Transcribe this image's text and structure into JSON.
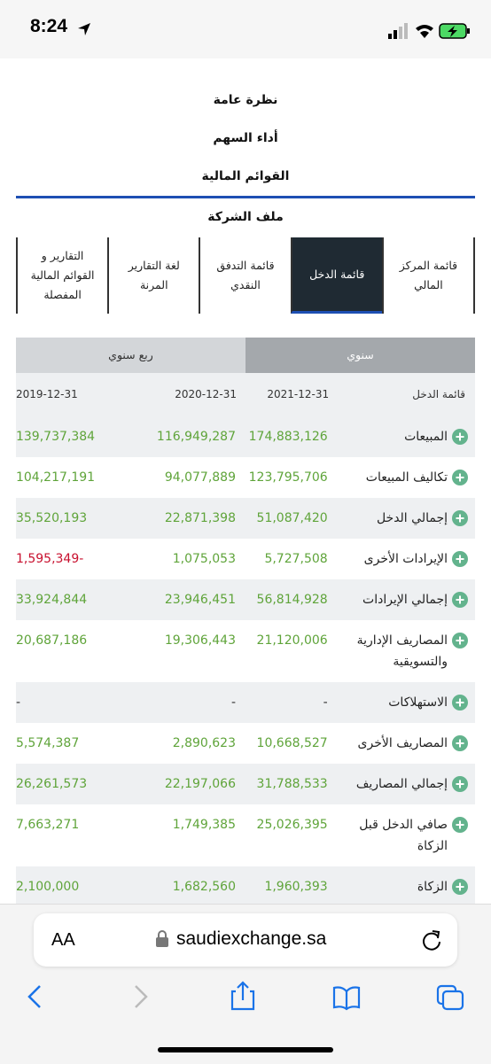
{
  "status_bar": {
    "time": "8:24"
  },
  "nav": {
    "items": [
      "نظرة عامة",
      "أداء السهم",
      "القوائم المالية",
      "ملف الشركة"
    ],
    "selected": 2
  },
  "tabs": {
    "items": [
      "قائمة المركز المالي",
      "قائمة الدخل",
      "قائمة التدفق النقدي",
      "لغة التقارير المرنة",
      "التقارير و القوائم المالية المفصلة"
    ],
    "active": 1
  },
  "period": {
    "items": [
      "سنوي",
      "ربع سنوي"
    ],
    "active": 0
  },
  "table": {
    "header": [
      "قائمة الدخل",
      "2021-12-31",
      "2020-12-31",
      "2019-12-31"
    ],
    "rows": [
      [
        "المبيعات",
        "174,883,126",
        "116,949,287",
        "139,737,384"
      ],
      [
        "تكاليف المبيعات",
        "123,795,706",
        "94,077,889",
        "104,217,191"
      ],
      [
        "إجمالي الدخل",
        "51,087,420",
        "22,871,398",
        "35,520,193"
      ],
      [
        "الإيرادات الأخرى",
        "5,727,508",
        "1,075,053",
        "1,595,349-"
      ],
      [
        "إجمالي الإيرادات",
        "56,814,928",
        "23,946,451",
        "33,924,844"
      ],
      [
        "المصاريف الإدارية والتسويقية",
        "21,120,006",
        "19,306,443",
        "20,687,186"
      ],
      [
        "الاستهلاكات",
        "-",
        "-",
        "-"
      ],
      [
        "المصاريف الأخرى",
        "10,668,527",
        "2,890,623",
        "5,574,387"
      ],
      [
        "إجمالي المصاريف",
        "31,788,533",
        "22,197,066",
        "26,261,573"
      ],
      [
        "صافي الدخل قبل الزكاة",
        "25,026,395",
        "1,749,385",
        "7,663,271"
      ],
      [
        "الزكاة",
        "1,960,393",
        "1,682,560",
        "2,100,000"
      ]
    ]
  },
  "browser": {
    "text_size": "AA",
    "url": "saudiexchange.sa"
  }
}
